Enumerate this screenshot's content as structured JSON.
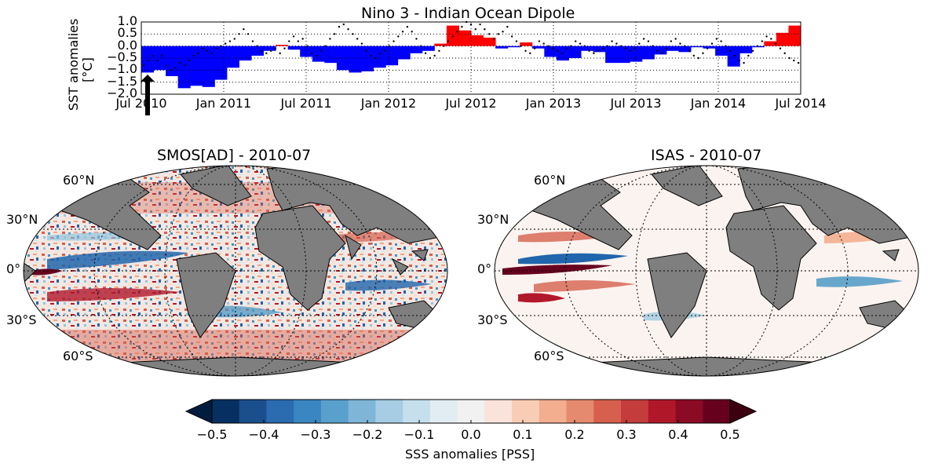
{
  "top_chart": {
    "title": "Nino 3 - Indian Ocean Dipole",
    "ylabel": "SST anomalies\n[°C]",
    "yticks": [
      "1.0",
      "0.5",
      "0.0",
      "−0.5",
      "−1.0",
      "−1.5",
      "−2.0"
    ],
    "xticks": [
      "Jul 2010",
      "Jan 2011",
      "Jul 2011",
      "Jan 2012",
      "Jul 2012",
      "Jan 2013",
      "Jul 2013",
      "Jan 2014",
      "Jul 2014"
    ],
    "bar_positive_color": "#ff0000",
    "bar_negative_color": "#0000ff"
  },
  "chart_data": {
    "type": "bar",
    "title": "Nino 3 - Indian Ocean Dipole",
    "ylabel": "SST anomalies [°C]",
    "ylim": [
      -2.0,
      1.0
    ],
    "x_start": "2010-07",
    "x_end": "2014-07",
    "grid": true,
    "series": [
      {
        "name": "monthly bars",
        "values": [
          -1.1,
          -1.0,
          -1.25,
          -1.75,
          -1.65,
          -1.7,
          -1.4,
          -0.9,
          -0.6,
          -0.4,
          -0.2,
          0.05,
          -0.15,
          -0.45,
          -0.65,
          -0.7,
          -1.0,
          -1.1,
          -1.05,
          -0.9,
          -0.8,
          -0.55,
          -0.3,
          -0.2,
          0.1,
          0.85,
          0.65,
          0.45,
          0.35,
          -0.1,
          -0.05,
          0.15,
          -0.1,
          -0.45,
          -0.6,
          -0.5,
          -0.2,
          -0.25,
          -0.7,
          -0.7,
          -0.65,
          -0.55,
          -0.35,
          -0.2,
          -0.25,
          -0.05,
          -0.1,
          -0.4,
          -0.85,
          -0.3,
          -0.05,
          0.2,
          0.55,
          0.85
        ]
      },
      {
        "name": "weekly dots",
        "values": [
          -0.8,
          -0.6,
          -0.4,
          -0.6,
          -0.4,
          -0.8,
          -1.0,
          -0.9,
          -0.7,
          -0.8,
          -0.6,
          -0.4,
          -0.3,
          -0.1,
          -0.2,
          -0.3,
          -0.1,
          0.0,
          0.1,
          0.2,
          0.3,
          0.5,
          0.7,
          0.5,
          0.2,
          0.0,
          -0.2,
          -0.3,
          -0.2,
          -0.1,
          -0.3,
          -0.1,
          0.2,
          0.4,
          0.2,
          0.3,
          0.0,
          -0.3,
          -0.4,
          -0.2,
          0.0,
          0.3,
          0.5,
          0.8,
          0.9,
          0.7,
          0.5,
          0.3,
          0.1,
          -0.2,
          -0.4,
          -0.5,
          -0.3,
          -0.2,
          0.0,
          0.2,
          0.4,
          0.6,
          0.8,
          0.6,
          0.3,
          0.0,
          -0.3,
          -0.5,
          -0.4,
          -0.2,
          0.0,
          0.2,
          0.4,
          0.6,
          0.8,
          1.0,
          0.9,
          0.7,
          0.9,
          0.7,
          0.5,
          0.3,
          0.5,
          0.6,
          0.8,
          0.4,
          0.2,
          0.0,
          -0.2,
          -0.3,
          -0.1,
          0.2,
          0.1,
          0.0,
          -0.1,
          -0.2,
          -0.3,
          -0.1,
          0.0,
          0.2,
          0.1,
          0.0,
          -0.2,
          -0.3,
          -0.2,
          -0.1,
          0.0,
          0.2,
          0.1,
          0.0,
          -0.1,
          -0.2,
          -0.1,
          0.1,
          0.3,
          0.2,
          0.0,
          -0.2,
          -0.3,
          -0.1,
          0.2,
          0.3,
          0.1,
          0.0,
          -0.2,
          -0.4,
          -0.5,
          -0.3,
          -0.1,
          0.1,
          0.3,
          0.2,
          0.0,
          -0.2,
          -0.4,
          -0.6,
          -0.7,
          -0.4,
          -0.2,
          0.0,
          0.2,
          0.4,
          0.3,
          0.1,
          -0.1,
          -0.3,
          -0.5,
          -0.6,
          -0.7
        ]
      }
    ]
  },
  "maps": [
    {
      "title": "SMOS[AD] - 2010-07",
      "lat_labels": [
        "60°N",
        "30°N",
        "0°",
        "30°S",
        "60°S"
      ]
    },
    {
      "title": "ISAS - 2010-07",
      "lat_labels": [
        "60°N",
        "30°N",
        "0°",
        "30°S",
        "60°S"
      ]
    }
  ],
  "colorbar": {
    "label": "SSS anomalies [PSS]",
    "ticks": [
      "−0.5",
      "−0.4",
      "−0.3",
      "−0.2",
      "−0.1",
      "0.0",
      "0.1",
      "0.2",
      "0.3",
      "0.4",
      "0.5"
    ],
    "colors": [
      "#053061",
      "#1b4e8c",
      "#2b6cb0",
      "#3a86c2",
      "#5aa0cd",
      "#7fb6d8",
      "#a6cde3",
      "#c6dfec",
      "#e2edf3",
      "#f1f1f1",
      "#f9e3da",
      "#f9cdb5",
      "#f3ad8f",
      "#e58a6e",
      "#d6604d",
      "#c43c3c",
      "#b0182a",
      "#8c0b24",
      "#67001f"
    ],
    "range": [
      -0.5,
      0.5
    ],
    "extend": "both",
    "low_color": "#011c3e",
    "high_color": "#3d0010"
  },
  "land_color": "#7f7f7f"
}
